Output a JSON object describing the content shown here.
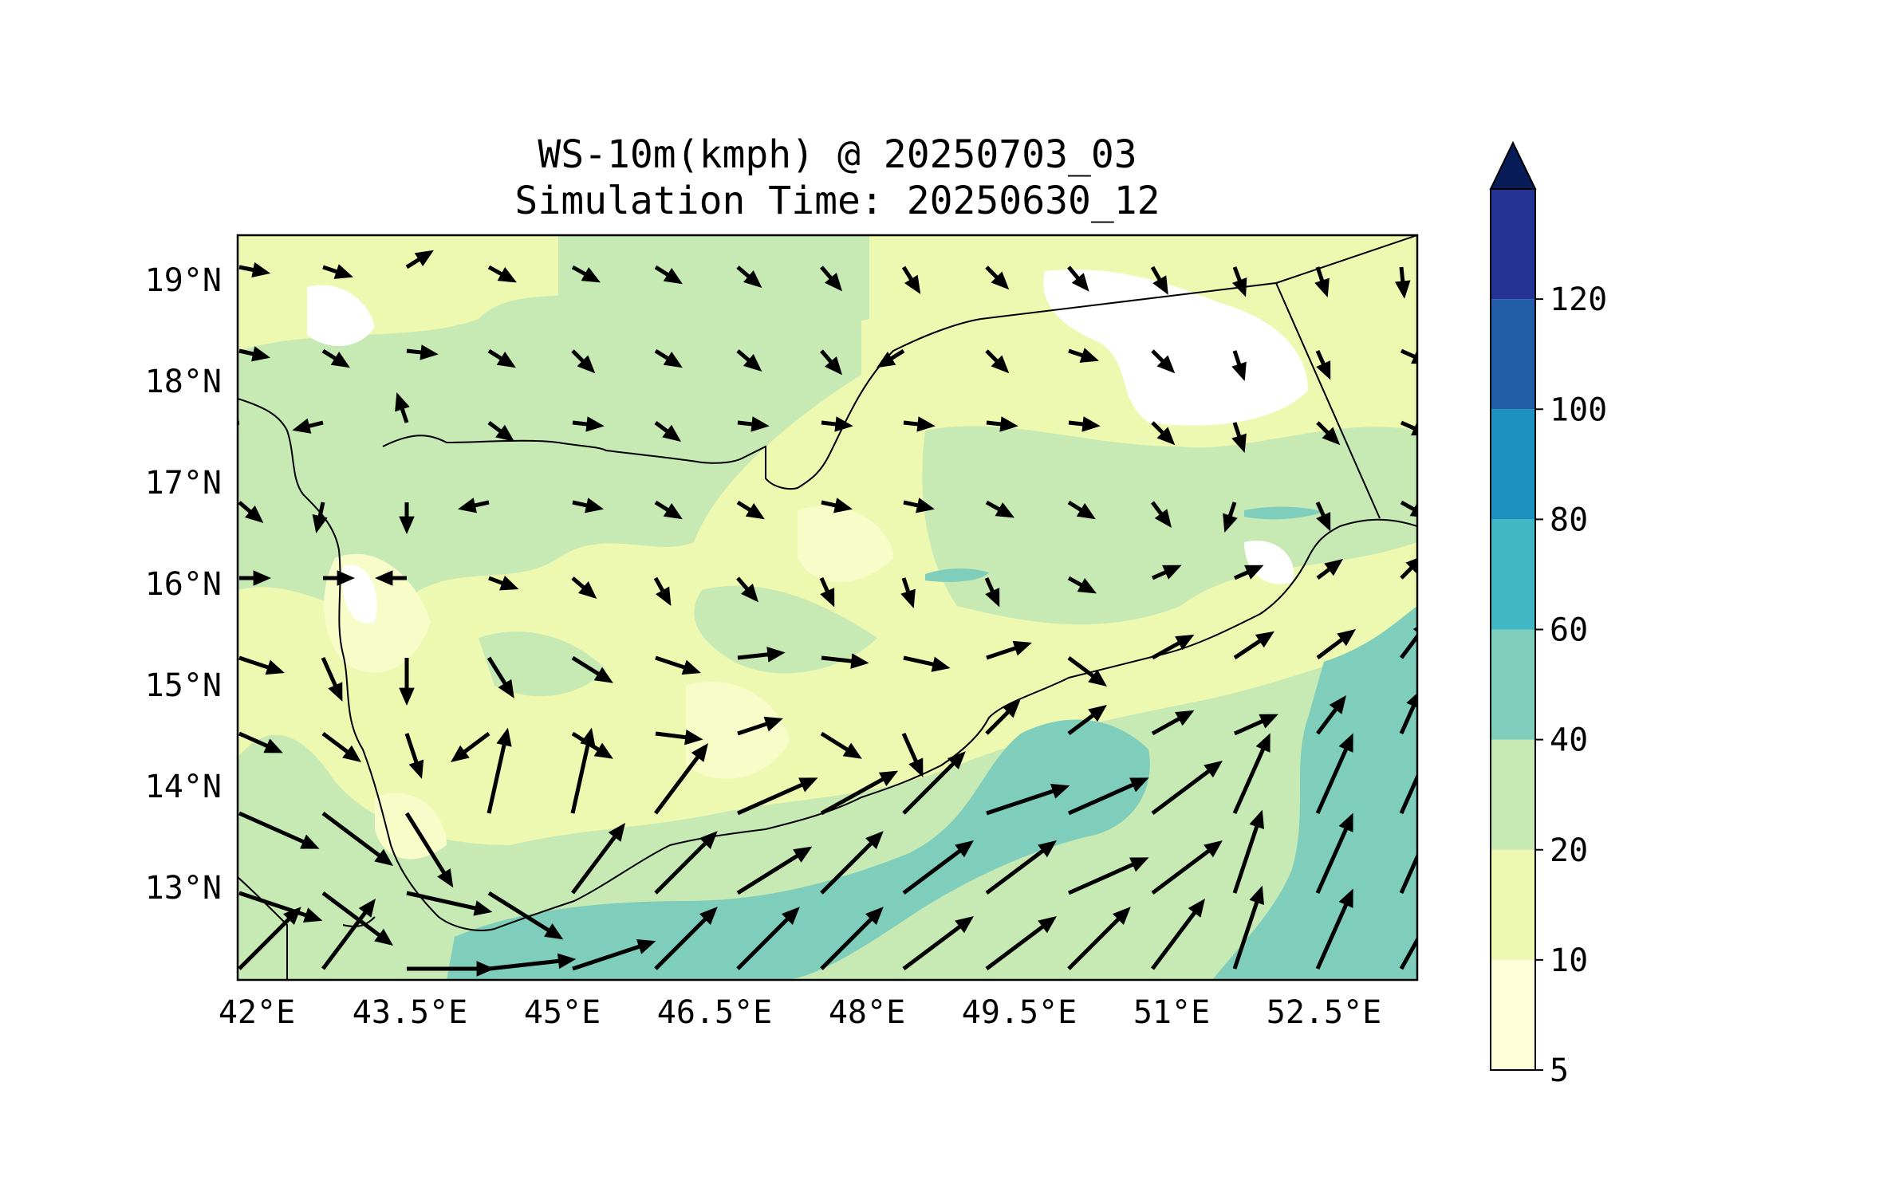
{
  "title": {
    "line1": "WS-10m(kmph) @ 20250703_03",
    "line2": "Simulation Time: 20250630_12"
  },
  "map": {
    "lon_ticks": [
      "42°E",
      "43.5°E",
      "45°E",
      "46.5°E",
      "48°E",
      "49.5°E",
      "51°E",
      "52.5°E"
    ],
    "lat_ticks": [
      "19°N",
      "18°N",
      "17°N",
      "16°N",
      "15°N",
      "14°N",
      "13°N"
    ],
    "lon_range": [
      41.8,
      53.4
    ],
    "lat_range": [
      12.1,
      19.45
    ]
  },
  "colorbar": {
    "levels": [
      5,
      10,
      20,
      40,
      60,
      80,
      100,
      120
    ],
    "tick_labels": [
      "5",
      "10",
      "20",
      "40",
      "60",
      "80",
      "100",
      "120"
    ],
    "colors": [
      "#ffffd9",
      "#edf8b1",
      "#c7e9b4",
      "#7fcdbb",
      "#41b6c4",
      "#1d91c0",
      "#225ea8",
      "#253494"
    ],
    "extend_color": "#081d58",
    "extend": "max"
  }
}
